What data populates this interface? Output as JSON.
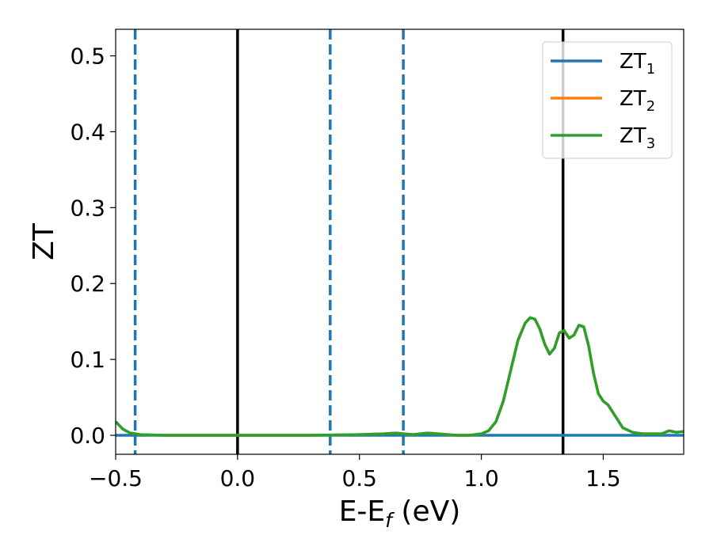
{
  "chart_data": {
    "type": "line",
    "xlabel": "E-E",
    "xlabel_sub": "f",
    "xlabel_unit": " (eV)",
    "ylabel": "ZT",
    "xlim": [
      -0.5,
      1.83
    ],
    "ylim": [
      -0.025,
      0.535
    ],
    "xticks": [
      -0.5,
      0.0,
      0.5,
      1.0,
      1.5
    ],
    "xtick_labels": [
      "−0.5",
      "0.0",
      "0.5",
      "1.0",
      "1.5"
    ],
    "yticks": [
      0.0,
      0.1,
      0.2,
      0.3,
      0.4,
      0.5
    ],
    "ytick_labels": [
      "0.0",
      "0.1",
      "0.2",
      "0.3",
      "0.4",
      "0.5"
    ],
    "grid": false,
    "legend_position": "top-right",
    "vlines_solid": [
      0.0,
      1.335
    ],
    "vlines_dashed": [
      -0.42,
      0.38,
      0.68
    ],
    "series": [
      {
        "name": "ZT",
        "name_sub": "1",
        "color": "#1f77b4",
        "x": [
          -0.5,
          1.83
        ],
        "y": [
          0.0,
          0.0
        ]
      },
      {
        "name": "ZT",
        "name_sub": "2",
        "color": "#ff7f0e",
        "x": [
          -0.5,
          -0.47,
          -0.44,
          -0.4,
          -0.3,
          0.0,
          0.3,
          0.5,
          0.6,
          0.65,
          0.68,
          0.72,
          0.78,
          0.82,
          0.9,
          0.95,
          1.0,
          1.03,
          1.06,
          1.09,
          1.12,
          1.15,
          1.18,
          1.2,
          1.22,
          1.24,
          1.26,
          1.28,
          1.3,
          1.32,
          1.34,
          1.36,
          1.38,
          1.4,
          1.42,
          1.44,
          1.46,
          1.48,
          1.5,
          1.52,
          1.55,
          1.58,
          1.62,
          1.66,
          1.7,
          1.74,
          1.77,
          1.8,
          1.83
        ],
        "y": [
          0.018,
          0.008,
          0.003,
          0.001,
          0.0,
          0.0,
          0.0,
          0.001,
          0.002,
          0.003,
          0.002,
          0.001,
          0.003,
          0.002,
          0.0,
          0.0,
          0.002,
          0.006,
          0.018,
          0.045,
          0.085,
          0.125,
          0.148,
          0.155,
          0.153,
          0.14,
          0.12,
          0.107,
          0.115,
          0.135,
          0.138,
          0.128,
          0.132,
          0.145,
          0.143,
          0.118,
          0.082,
          0.055,
          0.045,
          0.04,
          0.025,
          0.01,
          0.004,
          0.002,
          0.002,
          0.002,
          0.006,
          0.004,
          0.005
        ]
      },
      {
        "name": "ZT",
        "name_sub": "3",
        "color": "#2ca02c",
        "x": [
          -0.5,
          -0.47,
          -0.44,
          -0.4,
          -0.3,
          0.0,
          0.3,
          0.5,
          0.6,
          0.65,
          0.68,
          0.72,
          0.78,
          0.82,
          0.9,
          0.95,
          1.0,
          1.03,
          1.06,
          1.09,
          1.12,
          1.15,
          1.18,
          1.2,
          1.22,
          1.24,
          1.26,
          1.28,
          1.3,
          1.32,
          1.34,
          1.36,
          1.38,
          1.4,
          1.42,
          1.44,
          1.46,
          1.48,
          1.5,
          1.52,
          1.55,
          1.58,
          1.62,
          1.66,
          1.7,
          1.74,
          1.77,
          1.8,
          1.83
        ],
        "y": [
          0.018,
          0.008,
          0.003,
          0.001,
          0.0,
          0.0,
          0.0,
          0.001,
          0.002,
          0.003,
          0.002,
          0.001,
          0.003,
          0.002,
          0.0,
          0.0,
          0.002,
          0.006,
          0.018,
          0.045,
          0.085,
          0.125,
          0.148,
          0.155,
          0.153,
          0.14,
          0.12,
          0.107,
          0.115,
          0.135,
          0.138,
          0.128,
          0.132,
          0.145,
          0.143,
          0.118,
          0.082,
          0.055,
          0.045,
          0.04,
          0.025,
          0.01,
          0.004,
          0.002,
          0.002,
          0.002,
          0.006,
          0.004,
          0.005
        ]
      }
    ]
  }
}
